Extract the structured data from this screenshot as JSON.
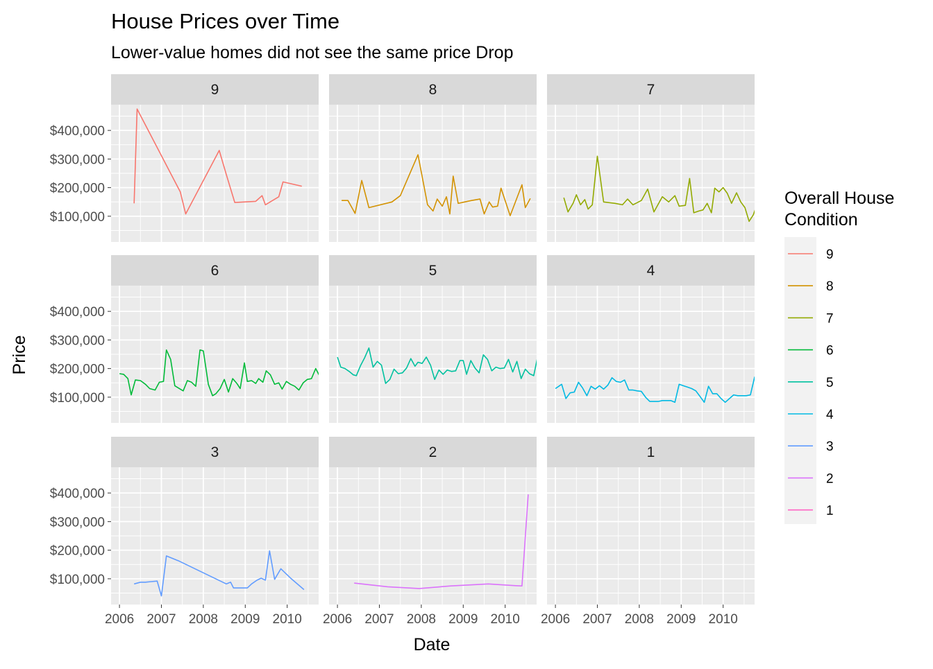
{
  "chart_data": {
    "type": "line",
    "title": "House Prices over Time",
    "subtitle": "Lower-value homes did not see the same price Drop",
    "xlabel": "Date",
    "ylabel": "Price",
    "xlim": [
      2005.8,
      2010.75
    ],
    "ylim": [
      10000,
      490000
    ],
    "x_ticks": [
      2006,
      2007,
      2008,
      2009,
      2010
    ],
    "x_tick_labels": [
      "2006",
      "2007",
      "2008",
      "2009",
      "2010"
    ],
    "y_ticks": [
      100000,
      200000,
      300000,
      400000
    ],
    "y_tick_labels": [
      "$100,000",
      "$200,000",
      "$300,000",
      "$400,000"
    ],
    "grid": true,
    "facet_rows": 3,
    "facet_cols": 3,
    "legend": {
      "title_lines": [
        "Overall House",
        " Condition"
      ],
      "position": "right",
      "entries": [
        {
          "label": "9",
          "color": "#F8766D"
        },
        {
          "label": "8",
          "color": "#D39200"
        },
        {
          "label": "7",
          "color": "#93AA00"
        },
        {
          "label": "6",
          "color": "#00BA38"
        },
        {
          "label": "5",
          "color": "#00C19F"
        },
        {
          "label": "4",
          "color": "#00B9E3"
        },
        {
          "label": "3",
          "color": "#619CFF"
        },
        {
          "label": "2",
          "color": "#DB72FB"
        },
        {
          "label": "1",
          "color": "#FF61C3"
        }
      ]
    },
    "facets": [
      {
        "label": "9",
        "color": "#F8766D",
        "points": [
          [
            2006.35,
            145000
          ],
          [
            2006.42,
            475000
          ],
          [
            2007.45,
            185000
          ],
          [
            2007.58,
            108000
          ],
          [
            2008.38,
            330000
          ],
          [
            2008.55,
            245000
          ],
          [
            2008.75,
            148000
          ],
          [
            2009.25,
            152000
          ],
          [
            2009.4,
            172000
          ],
          [
            2009.48,
            140000
          ],
          [
            2009.8,
            168000
          ],
          [
            2009.9,
            220000
          ],
          [
            2010.35,
            205000
          ]
        ]
      },
      {
        "label": "8",
        "color": "#D39200",
        "points": [
          [
            2006.1,
            155000
          ],
          [
            2006.25,
            155000
          ],
          [
            2006.42,
            110000
          ],
          [
            2006.58,
            225000
          ],
          [
            2006.75,
            130000
          ],
          [
            2007.3,
            150000
          ],
          [
            2007.5,
            172000
          ],
          [
            2007.92,
            315000
          ],
          [
            2008.15,
            140000
          ],
          [
            2008.28,
            118000
          ],
          [
            2008.38,
            160000
          ],
          [
            2008.5,
            135000
          ],
          [
            2008.6,
            168000
          ],
          [
            2008.68,
            108000
          ],
          [
            2008.76,
            240000
          ],
          [
            2008.88,
            145000
          ],
          [
            2009.2,
            155000
          ],
          [
            2009.4,
            160000
          ],
          [
            2009.5,
            108000
          ],
          [
            2009.62,
            150000
          ],
          [
            2009.7,
            132000
          ],
          [
            2009.82,
            135000
          ],
          [
            2009.9,
            198000
          ],
          [
            2010.12,
            102000
          ],
          [
            2010.4,
            210000
          ],
          [
            2010.48,
            130000
          ],
          [
            2010.6,
            162000
          ]
        ]
      },
      {
        "label": "7",
        "color": "#93AA00",
        "points": [
          [
            2006.2,
            165000
          ],
          [
            2006.3,
            115000
          ],
          [
            2006.42,
            145000
          ],
          [
            2006.5,
            175000
          ],
          [
            2006.6,
            140000
          ],
          [
            2006.7,
            158000
          ],
          [
            2006.78,
            125000
          ],
          [
            2006.88,
            140000
          ],
          [
            2007.0,
            310000
          ],
          [
            2007.15,
            150000
          ],
          [
            2007.42,
            145000
          ],
          [
            2007.6,
            140000
          ],
          [
            2007.72,
            160000
          ],
          [
            2007.85,
            140000
          ],
          [
            2008.05,
            155000
          ],
          [
            2008.2,
            195000
          ],
          [
            2008.35,
            115000
          ],
          [
            2008.55,
            168000
          ],
          [
            2008.7,
            150000
          ],
          [
            2008.85,
            172000
          ],
          [
            2008.95,
            135000
          ],
          [
            2009.1,
            138000
          ],
          [
            2009.2,
            232000
          ],
          [
            2009.3,
            112000
          ],
          [
            2009.42,
            118000
          ],
          [
            2009.52,
            122000
          ],
          [
            2009.62,
            145000
          ],
          [
            2009.72,
            112000
          ],
          [
            2009.8,
            198000
          ],
          [
            2009.9,
            185000
          ],
          [
            2010.0,
            200000
          ],
          [
            2010.1,
            180000
          ],
          [
            2010.2,
            145000
          ],
          [
            2010.32,
            182000
          ],
          [
            2010.42,
            150000
          ],
          [
            2010.52,
            130000
          ],
          [
            2010.62,
            82000
          ],
          [
            2010.72,
            105000
          ],
          [
            2010.85,
            158000
          ],
          [
            2010.98,
            145000
          ],
          [
            2011.08,
            132000
          ],
          [
            2011.15,
            168000
          ]
        ]
      },
      {
        "label": "6",
        "color": "#00BA38",
        "points": [
          [
            2006.0,
            182000
          ],
          [
            2006.1,
            180000
          ],
          [
            2006.2,
            165000
          ],
          [
            2006.28,
            108000
          ],
          [
            2006.38,
            160000
          ],
          [
            2006.5,
            158000
          ],
          [
            2006.62,
            145000
          ],
          [
            2006.72,
            130000
          ],
          [
            2006.85,
            125000
          ],
          [
            2006.95,
            152000
          ],
          [
            2007.05,
            155000
          ],
          [
            2007.12,
            265000
          ],
          [
            2007.22,
            232000
          ],
          [
            2007.32,
            140000
          ],
          [
            2007.45,
            128000
          ],
          [
            2007.52,
            122000
          ],
          [
            2007.62,
            158000
          ],
          [
            2007.72,
            152000
          ],
          [
            2007.82,
            138000
          ],
          [
            2007.92,
            265000
          ],
          [
            2008.0,
            262000
          ],
          [
            2008.12,
            145000
          ],
          [
            2008.22,
            105000
          ],
          [
            2008.3,
            112000
          ],
          [
            2008.4,
            130000
          ],
          [
            2008.5,
            162000
          ],
          [
            2008.6,
            118000
          ],
          [
            2008.7,
            165000
          ],
          [
            2008.8,
            148000
          ],
          [
            2008.88,
            130000
          ],
          [
            2008.98,
            220000
          ],
          [
            2009.05,
            155000
          ],
          [
            2009.15,
            158000
          ],
          [
            2009.25,
            148000
          ],
          [
            2009.32,
            165000
          ],
          [
            2009.42,
            152000
          ],
          [
            2009.5,
            192000
          ],
          [
            2009.6,
            178000
          ],
          [
            2009.7,
            145000
          ],
          [
            2009.8,
            150000
          ],
          [
            2009.88,
            128000
          ],
          [
            2009.98,
            155000
          ],
          [
            2010.08,
            145000
          ],
          [
            2010.18,
            138000
          ],
          [
            2010.28,
            125000
          ],
          [
            2010.38,
            150000
          ],
          [
            2010.48,
            162000
          ],
          [
            2010.58,
            165000
          ],
          [
            2010.68,
            200000
          ],
          [
            2010.78,
            172000
          ],
          [
            2010.88,
            135000
          ],
          [
            2010.98,
            155000
          ],
          [
            2011.05,
            118000
          ],
          [
            2011.15,
            140000
          ],
          [
            2011.22,
            138000
          ]
        ]
      },
      {
        "label": "5",
        "color": "#00C19F",
        "points": [
          [
            2006.0,
            240000
          ],
          [
            2006.08,
            205000
          ],
          [
            2006.18,
            200000
          ],
          [
            2006.28,
            190000
          ],
          [
            2006.38,
            178000
          ],
          [
            2006.45,
            175000
          ],
          [
            2006.55,
            210000
          ],
          [
            2006.65,
            238000
          ],
          [
            2006.75,
            272000
          ],
          [
            2006.85,
            205000
          ],
          [
            2006.95,
            225000
          ],
          [
            2007.05,
            212000
          ],
          [
            2007.15,
            148000
          ],
          [
            2007.25,
            162000
          ],
          [
            2007.35,
            198000
          ],
          [
            2007.45,
            182000
          ],
          [
            2007.55,
            185000
          ],
          [
            2007.65,
            202000
          ],
          [
            2007.75,
            235000
          ],
          [
            2007.85,
            208000
          ],
          [
            2007.92,
            222000
          ],
          [
            2008.02,
            218000
          ],
          [
            2008.12,
            240000
          ],
          [
            2008.22,
            212000
          ],
          [
            2008.32,
            162000
          ],
          [
            2008.42,
            195000
          ],
          [
            2008.52,
            180000
          ],
          [
            2008.62,
            195000
          ],
          [
            2008.72,
            190000
          ],
          [
            2008.82,
            192000
          ],
          [
            2008.92,
            228000
          ],
          [
            2009.0,
            228000
          ],
          [
            2009.08,
            180000
          ],
          [
            2009.18,
            228000
          ],
          [
            2009.28,
            202000
          ],
          [
            2009.38,
            185000
          ],
          [
            2009.48,
            248000
          ],
          [
            2009.58,
            232000
          ],
          [
            2009.68,
            192000
          ],
          [
            2009.78,
            205000
          ],
          [
            2009.88,
            200000
          ],
          [
            2009.98,
            202000
          ],
          [
            2010.08,
            232000
          ],
          [
            2010.18,
            188000
          ],
          [
            2010.28,
            225000
          ],
          [
            2010.38,
            165000
          ],
          [
            2010.48,
            198000
          ],
          [
            2010.58,
            182000
          ],
          [
            2010.68,
            175000
          ],
          [
            2010.78,
            245000
          ],
          [
            2010.88,
            205000
          ],
          [
            2010.98,
            202000
          ],
          [
            2011.05,
            192000
          ],
          [
            2011.15,
            130000
          ]
        ]
      },
      {
        "label": "4",
        "color": "#00B9E3",
        "points": [
          [
            2006.0,
            130000
          ],
          [
            2006.15,
            145000
          ],
          [
            2006.25,
            95000
          ],
          [
            2006.35,
            115000
          ],
          [
            2006.45,
            118000
          ],
          [
            2006.55,
            152000
          ],
          [
            2006.65,
            132000
          ],
          [
            2006.75,
            105000
          ],
          [
            2006.85,
            138000
          ],
          [
            2006.95,
            128000
          ],
          [
            2007.05,
            140000
          ],
          [
            2007.15,
            128000
          ],
          [
            2007.25,
            142000
          ],
          [
            2007.35,
            168000
          ],
          [
            2007.45,
            155000
          ],
          [
            2007.55,
            152000
          ],
          [
            2007.65,
            160000
          ],
          [
            2007.75,
            125000
          ],
          [
            2007.85,
            125000
          ],
          [
            2007.95,
            122000
          ],
          [
            2008.05,
            120000
          ],
          [
            2008.15,
            100000
          ],
          [
            2008.25,
            85000
          ],
          [
            2008.35,
            85000
          ],
          [
            2008.45,
            85000
          ],
          [
            2008.55,
            88000
          ],
          [
            2008.65,
            88000
          ],
          [
            2008.75,
            88000
          ],
          [
            2008.85,
            82000
          ],
          [
            2008.95,
            145000
          ],
          [
            2009.05,
            140000
          ],
          [
            2009.15,
            135000
          ],
          [
            2009.25,
            130000
          ],
          [
            2009.35,
            122000
          ],
          [
            2009.45,
            102000
          ],
          [
            2009.55,
            82000
          ],
          [
            2009.65,
            138000
          ],
          [
            2009.75,
            112000
          ],
          [
            2009.85,
            112000
          ],
          [
            2009.95,
            95000
          ],
          [
            2010.05,
            82000
          ],
          [
            2010.15,
            95000
          ],
          [
            2010.25,
            108000
          ],
          [
            2010.35,
            105000
          ],
          [
            2010.45,
            105000
          ],
          [
            2010.55,
            105000
          ],
          [
            2010.65,
            108000
          ],
          [
            2010.75,
            170000
          ],
          [
            2010.85,
            85000
          ]
        ]
      },
      {
        "label": "3",
        "color": "#619CFF",
        "points": [
          [
            2006.35,
            82000
          ],
          [
            2006.5,
            88000
          ],
          [
            2006.62,
            88000
          ],
          [
            2006.75,
            90000
          ],
          [
            2006.9,
            92000
          ],
          [
            2007.0,
            40000
          ],
          [
            2007.12,
            180000
          ],
          [
            2007.42,
            162000
          ],
          [
            2008.55,
            82000
          ],
          [
            2008.65,
            88000
          ],
          [
            2008.72,
            68000
          ],
          [
            2008.9,
            68000
          ],
          [
            2009.05,
            68000
          ],
          [
            2009.15,
            82000
          ],
          [
            2009.28,
            95000
          ],
          [
            2009.38,
            102000
          ],
          [
            2009.48,
            95000
          ],
          [
            2009.58,
            198000
          ],
          [
            2009.7,
            98000
          ],
          [
            2009.85,
            135000
          ],
          [
            2010.1,
            100000
          ],
          [
            2010.4,
            62000
          ]
        ]
      },
      {
        "label": "2",
        "color": "#DB72FB",
        "points": [
          [
            2006.4,
            85000
          ],
          [
            2007.2,
            72000
          ],
          [
            2007.95,
            66000
          ],
          [
            2008.7,
            75000
          ],
          [
            2009.6,
            82000
          ],
          [
            2010.25,
            76000
          ],
          [
            2010.4,
            75000
          ],
          [
            2010.55,
            395000
          ]
        ]
      },
      {
        "label": "1",
        "color": "#FF61C3",
        "points": []
      }
    ]
  }
}
